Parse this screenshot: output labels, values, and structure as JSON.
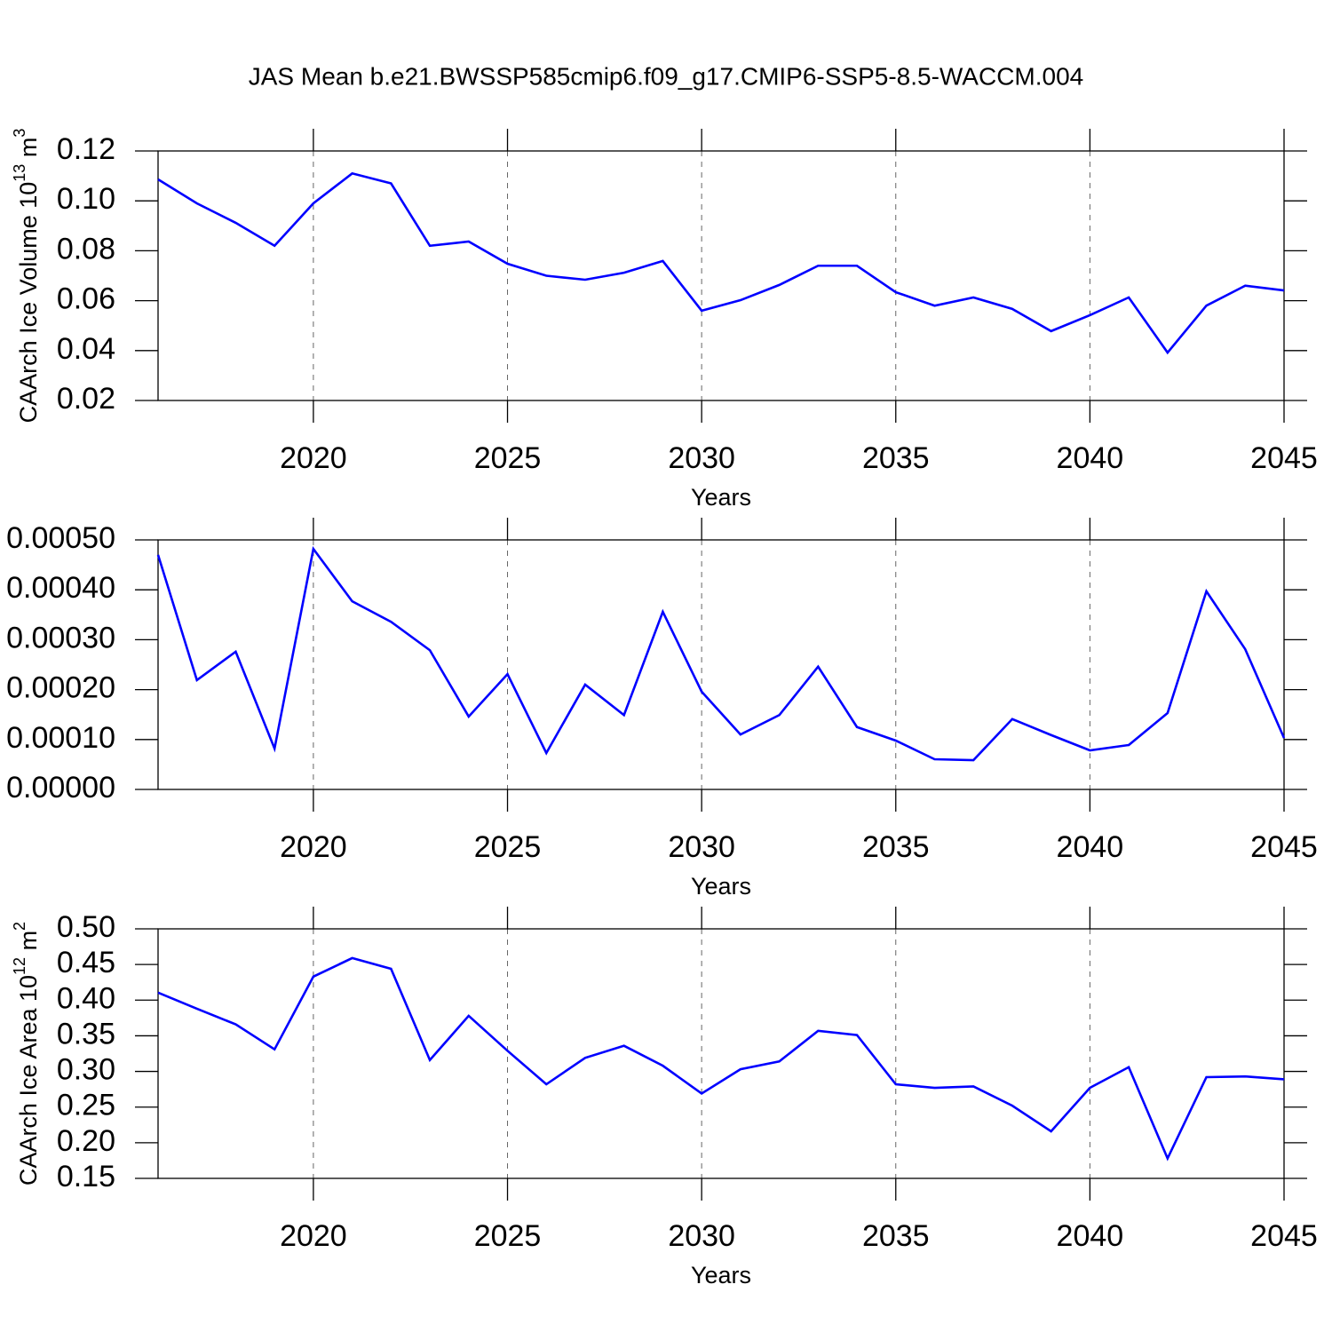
{
  "chart_data": [
    {
      "type": "line",
      "title": "JAS Mean b.e21.BWSSP585cmip6.f09_g17.CMIP6-SSP5-8.5-WACCM.004",
      "ylabel": [
        "CAArch Ice Volume 10",
        "13",
        " m",
        "3"
      ],
      "xlabel": "Years",
      "x": [
        2016,
        2017,
        2018,
        2019,
        2020,
        2021,
        2022,
        2023,
        2024,
        2025,
        2026,
        2027,
        2028,
        2029,
        2030,
        2031,
        2032,
        2033,
        2034,
        2035,
        2036,
        2037,
        2038,
        2039,
        2040,
        2041,
        2042,
        2043,
        2044,
        2045
      ],
      "series": [
        {
          "color": "#0000ff",
          "values": [
            0.1086,
            0.099,
            0.0912,
            0.082,
            0.099,
            0.111,
            0.107,
            0.082,
            0.0837,
            0.0748,
            0.07,
            0.0684,
            0.0712,
            0.0759,
            0.056,
            0.0602,
            0.0663,
            0.074,
            0.074,
            0.0634,
            0.058,
            0.0613,
            0.0567,
            0.0478,
            0.0542,
            0.0613,
            0.0392,
            0.058,
            0.066,
            0.0641
          ]
        }
      ],
      "xlim": [
        2016,
        2045
      ],
      "xticks": [
        2020,
        2025,
        2030,
        2035,
        2040,
        2045
      ],
      "ylim": [
        0.02,
        0.12
      ],
      "yticks": [
        0.02,
        0.04,
        0.06,
        0.08,
        {
          "value": 0.1,
          "label": "0.10"
        },
        0.12
      ],
      "grid": true
    },
    {
      "type": "line",
      "xlabel": "Years",
      "x": [
        2016,
        2017,
        2018,
        2019,
        2020,
        2021,
        2022,
        2023,
        2024,
        2025,
        2026,
        2027,
        2028,
        2029,
        2030,
        2031,
        2032,
        2033,
        2034,
        2035,
        2036,
        2037,
        2038,
        2039,
        2040,
        2041,
        2042,
        2043,
        2044,
        2045
      ],
      "series": [
        {
          "color": "#0000ff",
          "values": [
            0.00047,
            0.000219,
            0.000276,
            8.19e-05,
            0.000482,
            0.000377,
            0.000336,
            0.000279,
            0.000146,
            0.000231,
            7.3e-05,
            0.00021,
            0.000149,
            0.000356,
            0.000196,
            0.00011,
            0.000149,
            0.000246,
            0.000125,
            9.79e-05,
            6.05e-05,
            5.87e-05,
            0.000141,
            0.000109,
            7.83e-05,
            8.9e-05,
            0.000153,
            0.000397,
            0.000281,
            0.000103
          ]
        }
      ],
      "xlim": [
        2016,
        2045
      ],
      "xticks": [
        2020,
        2025,
        2030,
        2035,
        2040,
        2045
      ],
      "ylim": [
        0,
        0.0005
      ],
      "yticks": [
        {
          "value": 0,
          "label": "0.00000"
        },
        {
          "value": 0.0001,
          "label": "0.00010"
        },
        {
          "value": 0.0002,
          "label": "0.00020"
        },
        {
          "value": 0.0003,
          "label": "0.00030"
        },
        {
          "value": 0.0004,
          "label": "0.00040"
        },
        {
          "value": 0.0005,
          "label": "0.00050"
        }
      ],
      "grid": true
    },
    {
      "type": "line",
      "ylabel": [
        "CAArch Ice Area 10",
        "12",
        " m",
        "2"
      ],
      "xlabel": "Years",
      "x": [
        2016,
        2017,
        2018,
        2019,
        2020,
        2021,
        2022,
        2023,
        2024,
        2025,
        2026,
        2027,
        2028,
        2029,
        2030,
        2031,
        2032,
        2033,
        2034,
        2035,
        2036,
        2037,
        2038,
        2039,
        2040,
        2041,
        2042,
        2043,
        2044,
        2045
      ],
      "series": [
        {
          "color": "#0000ff",
          "values": [
            0.4106,
            0.388,
            0.366,
            0.331,
            0.433,
            0.459,
            0.444,
            0.316,
            0.378,
            0.329,
            0.282,
            0.319,
            0.336,
            0.308,
            0.269,
            0.303,
            0.314,
            0.357,
            0.351,
            0.282,
            0.277,
            0.279,
            0.252,
            0.216,
            0.277,
            0.306,
            0.178,
            0.292,
            0.293,
            0.289
          ]
        }
      ],
      "xlim": [
        2016,
        2045
      ],
      "xticks": [
        2020,
        2025,
        2030,
        2035,
        2040,
        2045
      ],
      "ylim": [
        0.15,
        0.5
      ],
      "yticks": [
        0.15,
        {
          "value": 0.2,
          "label": "0.20"
        },
        0.25,
        {
          "value": 0.3,
          "label": "0.30"
        },
        0.35,
        {
          "value": 0.4,
          "label": "0.40"
        },
        0.45,
        {
          "value": 0.5,
          "label": "0.50"
        }
      ],
      "grid": true
    }
  ]
}
